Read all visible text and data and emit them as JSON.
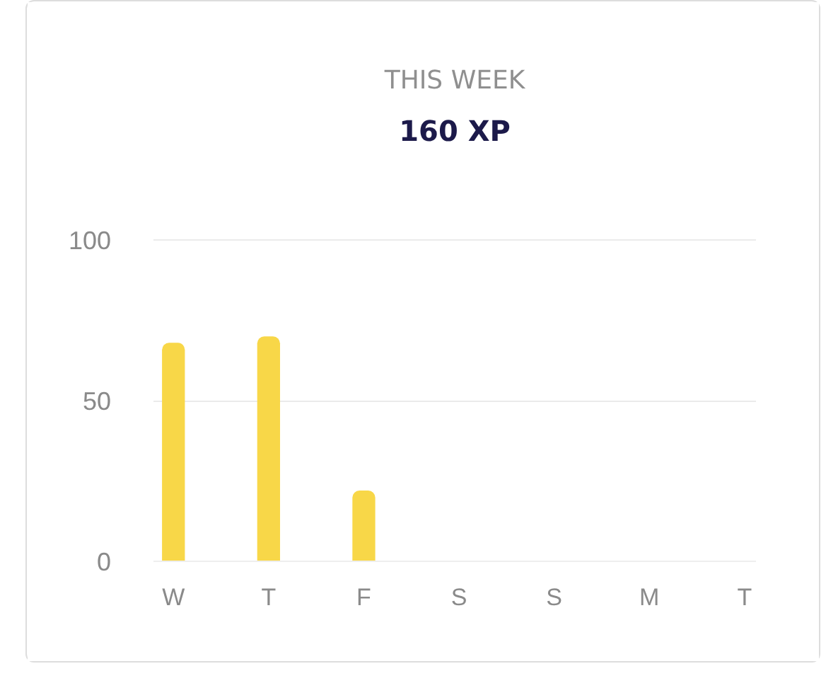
{
  "chart_data": {
    "type": "bar",
    "title": "THIS WEEK",
    "subtitle": "160 XP",
    "categories": [
      "W",
      "T",
      "F",
      "S",
      "S",
      "M",
      "T"
    ],
    "values": [
      68,
      70,
      22,
      null,
      null,
      null,
      null
    ],
    "color": "#f8d748",
    "ylim": [
      0,
      100
    ],
    "yticks": [
      0,
      50,
      100
    ],
    "grid": "y"
  }
}
